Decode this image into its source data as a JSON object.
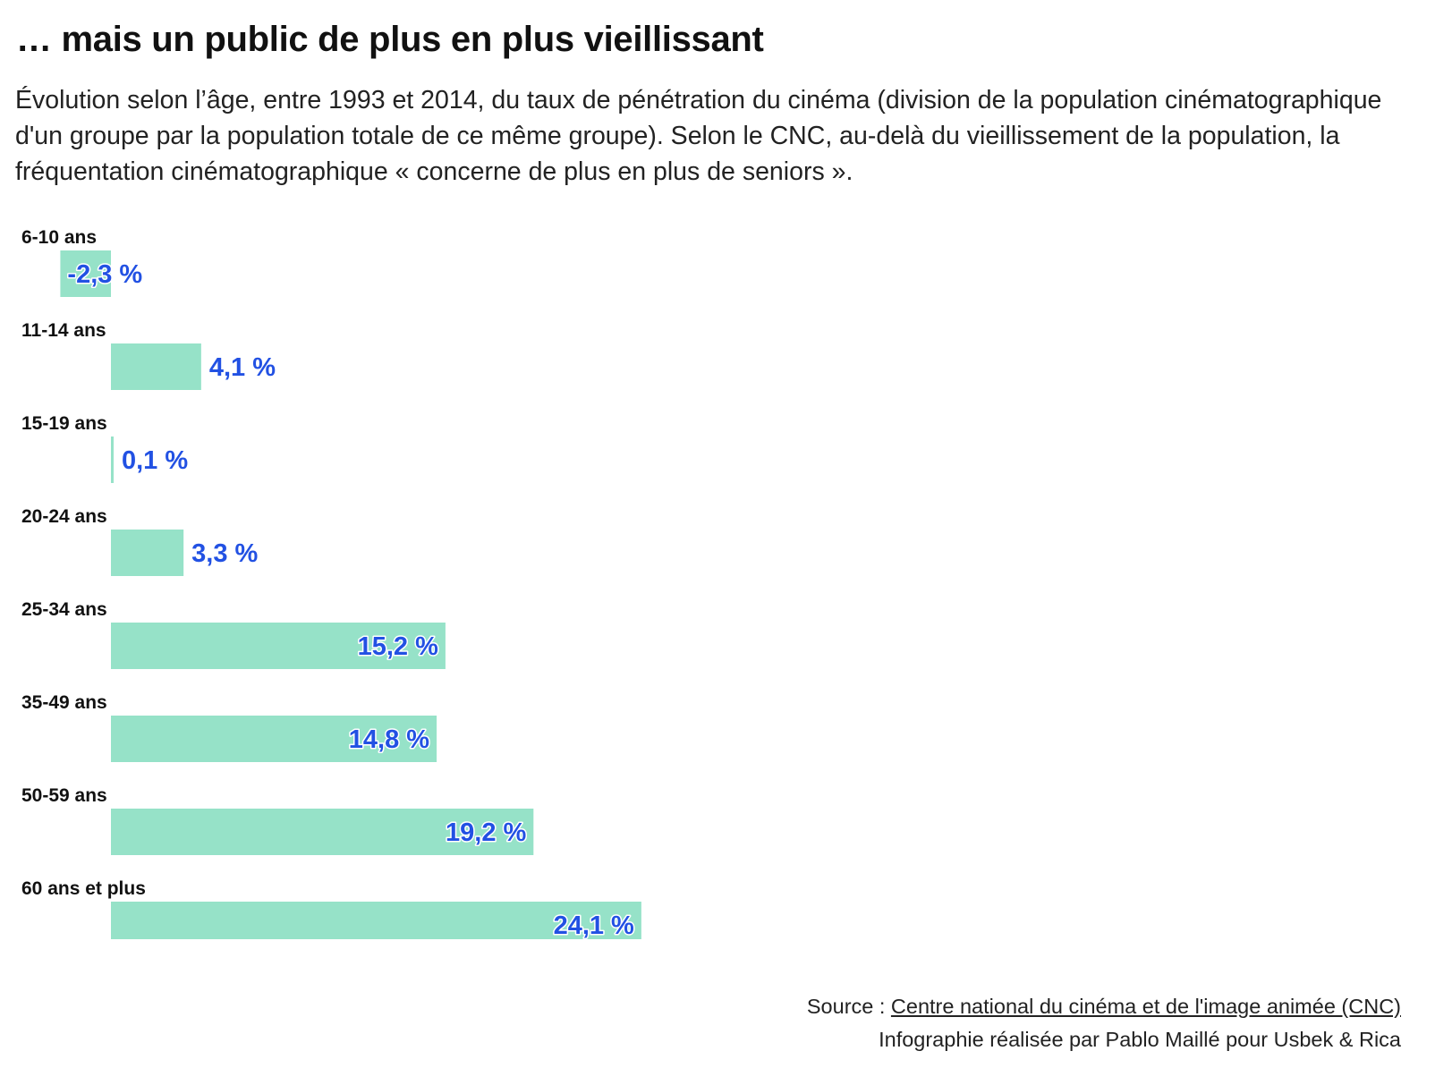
{
  "header": {
    "title": "… mais un public de plus en plus vieillissant",
    "subtitle": "Évolution selon l’âge, entre 1993 et 2014, du taux de pénétration du cinéma (division de la population cinématographique d'un groupe par la population totale de ce même groupe). Selon le CNC, au-delà du vieillissement de la population, la fréquentation cinématographique « concerne de plus en plus de seniors »."
  },
  "chart_data": {
    "type": "bar",
    "orientation": "horizontal",
    "categories": [
      "6-10 ans",
      "11-14 ans",
      "15-19 ans",
      "20-24 ans",
      "25-34 ans",
      "35-49 ans",
      "50-59 ans",
      "60 ans et plus"
    ],
    "values": [
      -2.3,
      4.1,
      0.1,
      3.3,
      15.2,
      14.8,
      19.2,
      24.1
    ],
    "value_labels": [
      "-2,3 %",
      "4,1 %",
      "0,1 %",
      "3,3 %",
      "15,2 %",
      "14,8 %",
      "19,2 %",
      "24,1 %"
    ],
    "unit": "%",
    "bar_color": "#96e2c8",
    "label_color": "#2251e3",
    "grid": false,
    "legend": "none"
  },
  "footer": {
    "source_prefix": "Source : ",
    "source_link": "Centre national du cinéma et de l'image animée (CNC)",
    "credit": "Infographie réalisée par Pablo Maillé pour Usbek & Rica"
  }
}
